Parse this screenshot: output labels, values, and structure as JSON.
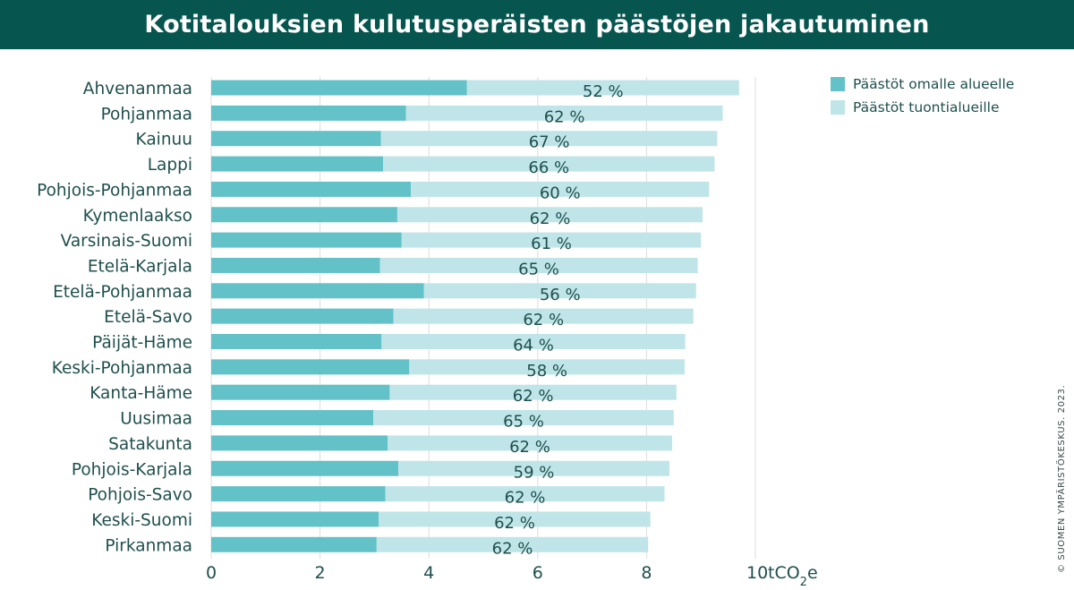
{
  "chart_data": {
    "type": "bar",
    "orientation": "horizontal",
    "stacked": true,
    "title": "Kotitalouksien kulutusperäisten päästöjen jakautuminen",
    "categories": [
      "Ahvenanmaa",
      "Pohjanmaa",
      "Kainuu",
      "Lappi",
      "Pohjois-Pohjanmaa",
      "Kymenlaakso",
      "Varsinais-Suomi",
      "Etelä-Karjala",
      "Etelä-Pohjanmaa",
      "Etelä-Savo",
      "Päijät-Häme",
      "Keski-Pohjanmaa",
      "Kanta-Häme",
      "Uusimaa",
      "Satakunta",
      "Pohjois-Karjala",
      "Pohjois-Savo",
      "Keski-Suomi",
      "Pirkanmaa"
    ],
    "series": [
      {
        "name": "Päästöt omalle alueelle",
        "color": "#62c2c8",
        "values": [
          4.7,
          3.58,
          3.12,
          3.16,
          3.67,
          3.42,
          3.5,
          3.1,
          3.91,
          3.35,
          3.13,
          3.64,
          3.28,
          2.98,
          3.24,
          3.44,
          3.2,
          3.08,
          3.04
        ]
      },
      {
        "name": "Päästöt tuontialueille",
        "color": "#bfe5e8",
        "values": [
          5.0,
          5.82,
          6.18,
          6.09,
          5.48,
          5.61,
          5.5,
          5.84,
          5.0,
          5.51,
          5.58,
          5.06,
          5.27,
          5.52,
          5.23,
          4.98,
          5.13,
          4.99,
          4.99
        ]
      }
    ],
    "labels": [
      "52 %",
      "62 %",
      "67 %",
      "66 %",
      "60 %",
      "62 %",
      "61 %",
      "65 %",
      "56 %",
      "62 %",
      "64 %",
      "58 %",
      "62 %",
      "65 %",
      "62 %",
      "59 %",
      "62 %",
      "62 %",
      "62 %"
    ],
    "xlim": [
      0,
      10
    ],
    "xticks": [
      "0",
      "2",
      "4",
      "6",
      "8",
      "10"
    ],
    "unit": "tCO₂e",
    "grid": true,
    "legend_position": "top-right"
  },
  "copyright": "© SUOMEN YMPÄRISTÖKESKUS. 2023."
}
